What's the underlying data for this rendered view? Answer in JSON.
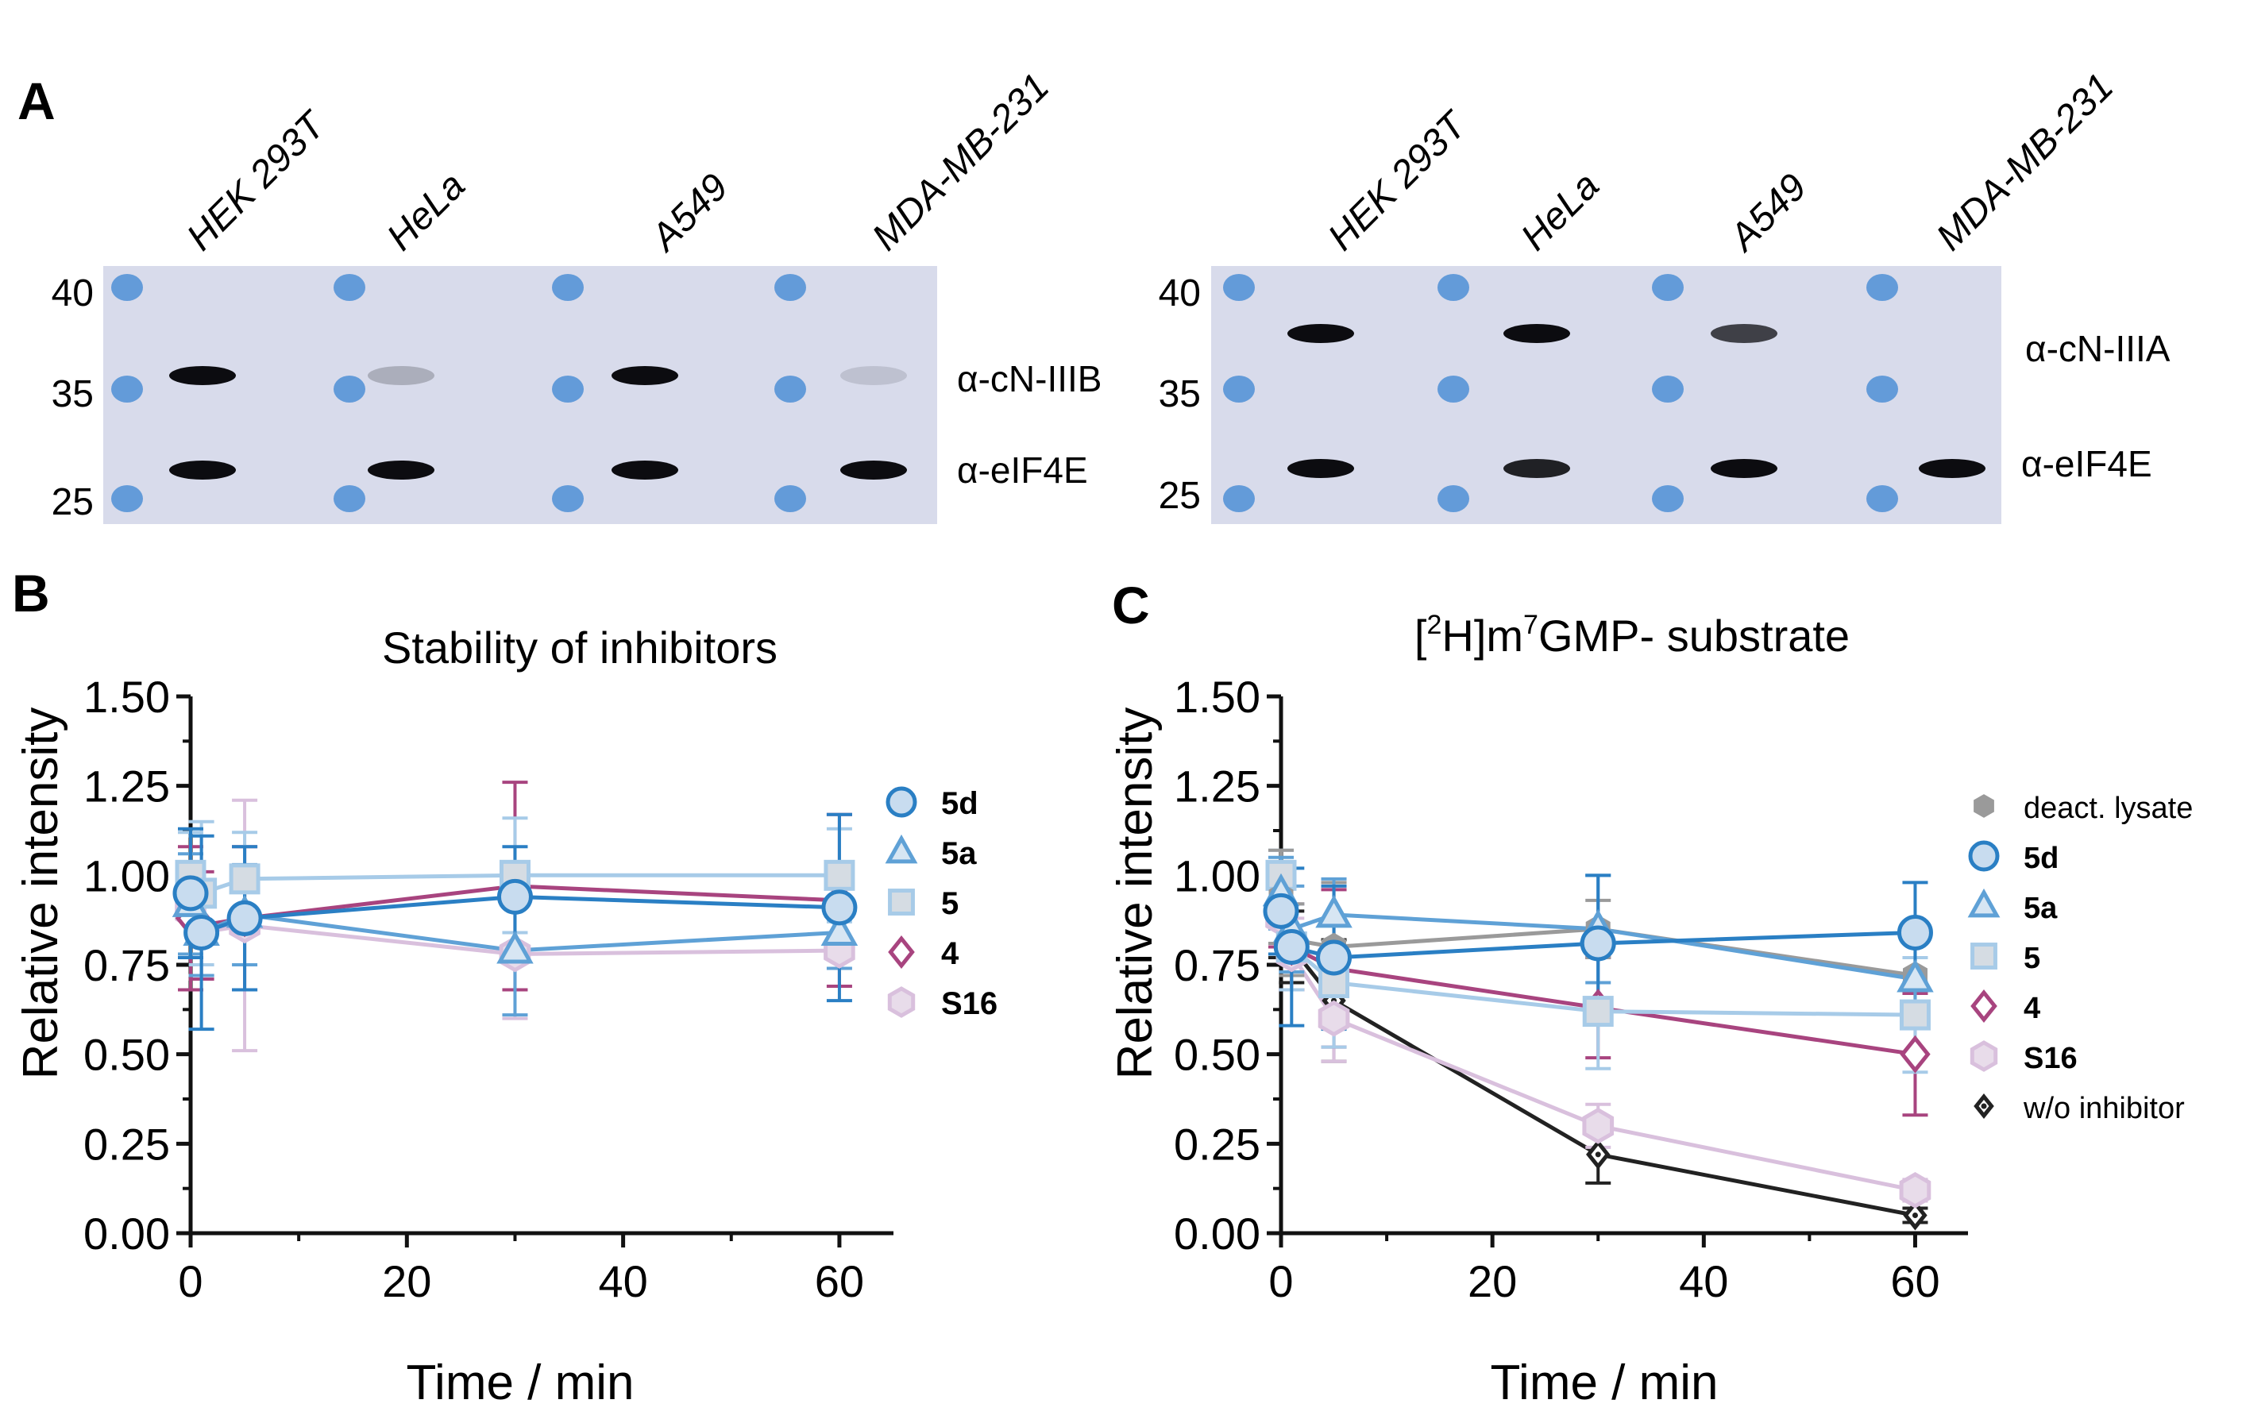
{
  "panel_a": {
    "label": "A",
    "blots": [
      {
        "lanes": [
          "HEK 293T",
          "HeLa",
          "A549",
          "MDA-MB-231"
        ],
        "markers": [
          "40",
          "35",
          "25"
        ],
        "antibodies": [
          "α-cN-IIIB",
          "α-eIF4E"
        ],
        "band_intensity": [
          [
            1.0,
            0.22,
            1.0,
            0.12
          ],
          [
            1.0,
            1.0,
            1.0,
            1.0
          ]
        ]
      },
      {
        "lanes": [
          "HEK 293T",
          "HeLa",
          "A549",
          "MDA-MB-231"
        ],
        "markers": [
          "40",
          "35",
          "25"
        ],
        "antibodies": [
          "α-cN-IIIA",
          "α-eIF4E"
        ],
        "band_intensity": [
          [
            1.0,
            1.0,
            0.75,
            0.0
          ],
          [
            1.0,
            0.9,
            1.0,
            1.0
          ]
        ]
      }
    ]
  },
  "colors": {
    "5d": "#2a7fc4",
    "5a": "#5fa1d6",
    "5": "#a7cbe8",
    "4": "#a8447f",
    "S16": "#d9c0dd",
    "deact": "#9a9a9a",
    "woinh": "#222222"
  },
  "chart_data": [
    {
      "panel": "B",
      "type": "line",
      "title": "Stability of inhibitors",
      "xlabel": "Time / min",
      "ylabel": "Relative intensity",
      "xlim": [
        0,
        65
      ],
      "ylim": [
        0,
        1.5
      ],
      "xticks": [
        "0",
        "20",
        "40",
        "60"
      ],
      "yticks": [
        "0.00",
        "0.25",
        "0.50",
        "0.75",
        "1.00",
        "1.25",
        "1.50"
      ],
      "series": [
        {
          "name": "S16",
          "marker": "hexagon",
          "color_key": "S16",
          "x": [
            0,
            1,
            5,
            30,
            60
          ],
          "y": [
            0.9,
            0.84,
            0.86,
            0.78,
            0.79
          ],
          "err": [
            0.12,
            0.12,
            0.35,
            0.18,
            0.1
          ]
        },
        {
          "name": "4",
          "marker": "diamond",
          "color_key": "4",
          "x": [
            0,
            1,
            5,
            30,
            60
          ],
          "y": [
            0.88,
            0.86,
            0.88,
            0.97,
            0.93
          ],
          "err": [
            0.2,
            0.15,
            0.2,
            0.29,
            0.24
          ]
        },
        {
          "name": "5",
          "marker": "square",
          "color_key": "5",
          "x": [
            0,
            1,
            5,
            30,
            60
          ],
          "y": [
            1.0,
            0.95,
            0.99,
            1.0,
            1.0
          ],
          "err": [
            0.12,
            0.2,
            0.13,
            0.16,
            0.13
          ]
        },
        {
          "name": "5a",
          "marker": "triangle",
          "color_key": "5a",
          "x": [
            0,
            1,
            5,
            30,
            60
          ],
          "y": [
            0.92,
            0.84,
            0.89,
            0.79,
            0.84
          ],
          "err": [
            0.14,
            0.12,
            0.14,
            0.18,
            0.1
          ]
        },
        {
          "name": "5d",
          "marker": "circle",
          "color_key": "5d",
          "x": [
            0,
            1,
            5,
            30,
            60
          ],
          "y": [
            0.95,
            0.84,
            0.88,
            0.94,
            0.91
          ],
          "err": [
            0.18,
            0.27,
            0.2,
            0.14,
            0.26
          ]
        }
      ],
      "legend": [
        {
          "label": "5d",
          "marker": "circle",
          "color_key": "5d"
        },
        {
          "label": "5a",
          "marker": "triangle",
          "color_key": "5a"
        },
        {
          "label": "5",
          "marker": "square",
          "color_key": "5"
        },
        {
          "label": "4",
          "marker": "diamond",
          "color_key": "4"
        },
        {
          "label": "S16",
          "marker": "hexagon",
          "color_key": "S16"
        }
      ]
    },
    {
      "panel": "C",
      "type": "line",
      "title": "[2H]m7GMP- substrate",
      "title_parts": {
        "open": "[",
        "sup1": "2",
        "mid": "H]m",
        "sup2": "7",
        "rest": "GMP- substrate"
      },
      "xlabel": "Time / min",
      "ylabel": "Relative intensity",
      "xlim": [
        0,
        65
      ],
      "ylim": [
        0,
        1.5
      ],
      "xticks": [
        "0",
        "20",
        "40",
        "60"
      ],
      "yticks": [
        "0.00",
        "0.25",
        "0.50",
        "0.75",
        "1.00",
        "1.25",
        "1.50"
      ],
      "series": [
        {
          "name": "w/o inhibitor",
          "marker": "diamond-dot",
          "color_key": "woinh",
          "x": [
            0,
            1,
            5,
            30,
            60
          ],
          "y": [
            0.87,
            0.8,
            0.65,
            0.22,
            0.05
          ],
          "err": [
            0.1,
            0.1,
            0.17,
            0.08,
            0.02
          ]
        },
        {
          "name": "S16",
          "marker": "hexagon",
          "color_key": "S16",
          "x": [
            0,
            1,
            5,
            30,
            60
          ],
          "y": [
            0.88,
            0.78,
            0.6,
            0.3,
            0.12
          ],
          "err": [
            0.1,
            0.1,
            0.12,
            0.06,
            0.03
          ]
        },
        {
          "name": "4",
          "marker": "diamond",
          "color_key": "4",
          "x": [
            0,
            1,
            5,
            30,
            60
          ],
          "y": [
            0.9,
            0.8,
            0.74,
            0.63,
            0.5
          ],
          "err": [
            0.1,
            0.12,
            0.22,
            0.14,
            0.17
          ]
        },
        {
          "name": "5",
          "marker": "square",
          "color_key": "5",
          "x": [
            0,
            1,
            5,
            30,
            60
          ],
          "y": [
            1.0,
            0.8,
            0.7,
            0.62,
            0.61
          ],
          "err": [
            0.07,
            0.12,
            0.18,
            0.16,
            0.16
          ]
        },
        {
          "name": "deact. lysate",
          "marker": "hexagon-filled",
          "color_key": "deact",
          "x": [
            0,
            1,
            5,
            30,
            60
          ],
          "y": [
            0.94,
            0.82,
            0.8,
            0.85,
            0.72
          ],
          "err": [
            0.13,
            0.1,
            0.18,
            0.08,
            0.1
          ]
        },
        {
          "name": "5a",
          "marker": "triangle",
          "color_key": "5a",
          "x": [
            0,
            1,
            5,
            30,
            60
          ],
          "y": [
            0.95,
            0.85,
            0.89,
            0.85,
            0.71
          ],
          "err": [
            0.1,
            0.12,
            0.1,
            0.15,
            0.1
          ]
        },
        {
          "name": "5d",
          "marker": "circle",
          "color_key": "5d",
          "x": [
            0,
            1,
            5,
            30,
            60
          ],
          "y": [
            0.9,
            0.8,
            0.77,
            0.81,
            0.84
          ],
          "err": [
            0.12,
            0.22,
            0.2,
            0.19,
            0.14
          ]
        }
      ],
      "legend": [
        {
          "label": "deact. lysate",
          "marker": "hexagon-filled",
          "color_key": "deact",
          "bold": false
        },
        {
          "label": "5d",
          "marker": "circle",
          "color_key": "5d",
          "bold": true
        },
        {
          "label": "5a",
          "marker": "triangle",
          "color_key": "5a",
          "bold": true
        },
        {
          "label": "5",
          "marker": "square",
          "color_key": "5",
          "bold": true
        },
        {
          "label": "4",
          "marker": "diamond",
          "color_key": "4",
          "bold": true
        },
        {
          "label": "S16",
          "marker": "hexagon",
          "color_key": "S16",
          "bold": true
        },
        {
          "label": "w/o inhibitor",
          "marker": "diamond-dot",
          "color_key": "woinh",
          "bold": false
        }
      ]
    }
  ],
  "panel_b_label": "B",
  "panel_c_label": "C"
}
